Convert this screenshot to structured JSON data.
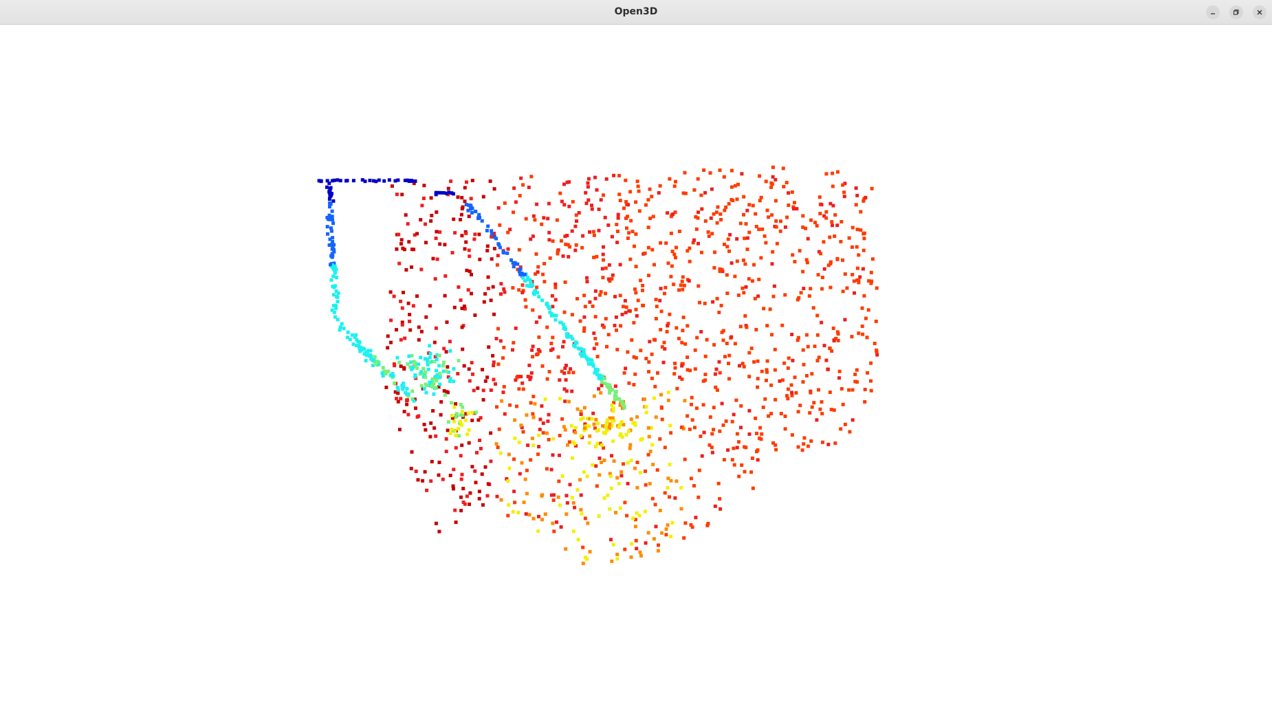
{
  "window": {
    "title": "Open3D"
  },
  "controls": {
    "minimize_icon": "minimize-icon",
    "maximize_icon": "restore-icon",
    "close_icon": "close-icon"
  },
  "viewport": {
    "background": "#ffffff",
    "content": "point-cloud",
    "colormap": "jet",
    "colors": {
      "dark_blue": "#0000c8",
      "blue": "#1464ff",
      "cyan": "#1ef0f0",
      "green": "#78f078",
      "yellow": "#f0f000",
      "orange": "#ff8c00",
      "red_orange": "#ff3c00",
      "red": "#f01e1e",
      "dark_red": "#c80000"
    }
  }
}
